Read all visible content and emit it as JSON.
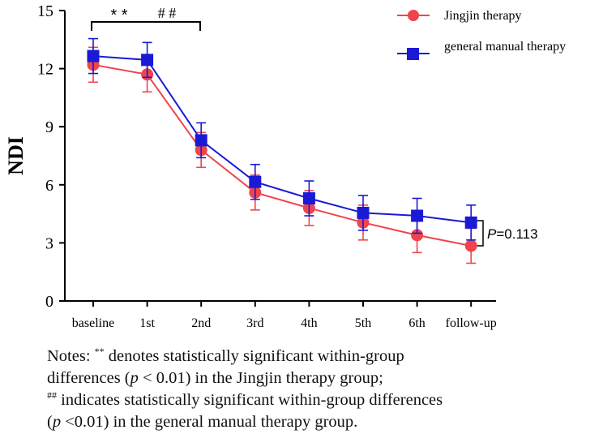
{
  "chart_data": {
    "type": "line",
    "ylabel": "NDI",
    "xlabel": "",
    "categories": [
      "baseline",
      "1st",
      "2nd",
      "3rd",
      "4th",
      "5th",
      "6th",
      "follow-up"
    ],
    "ylim": [
      0,
      15
    ],
    "yticks": [
      "0",
      "3",
      "6",
      "9",
      "12",
      "15"
    ],
    "series": [
      {
        "name": "Jingjin therapy",
        "color": "#f0444c",
        "marker": "circle",
        "values": [
          12.2,
          11.7,
          7.8,
          5.6,
          4.8,
          4.05,
          3.4,
          2.85
        ],
        "errors": [
          0.9,
          0.9,
          0.9,
          0.9,
          0.9,
          0.9,
          0.9,
          0.9
        ]
      },
      {
        "name": "general manual therapy",
        "color": "#1a1ad6",
        "marker": "square",
        "values": [
          12.65,
          12.45,
          8.3,
          6.15,
          5.3,
          4.55,
          4.4,
          4.05
        ],
        "errors": [
          0.9,
          0.9,
          0.9,
          0.9,
          0.9,
          0.9,
          0.9,
          0.9
        ]
      }
    ],
    "annotations": {
      "significance_stars": "* *",
      "significance_hashes": "# #",
      "p_value_italic": "P",
      "p_value_rest": "=0.113"
    }
  },
  "notes": {
    "line1_a": "Notes: ",
    "line1_sup": "**",
    "line1_b": " denotes statistically significant within-group",
    "line2_a": "differences (",
    "line2_p": "p",
    "line2_b": " < 0.01) in the Jingjin therapy group;",
    "line3_sup": "##",
    "line3_b": " indicates statistically significant within-group differences",
    "line4_a": "(",
    "line4_p": "p",
    "line4_b": " <0.01) in the general manual therapy group."
  }
}
